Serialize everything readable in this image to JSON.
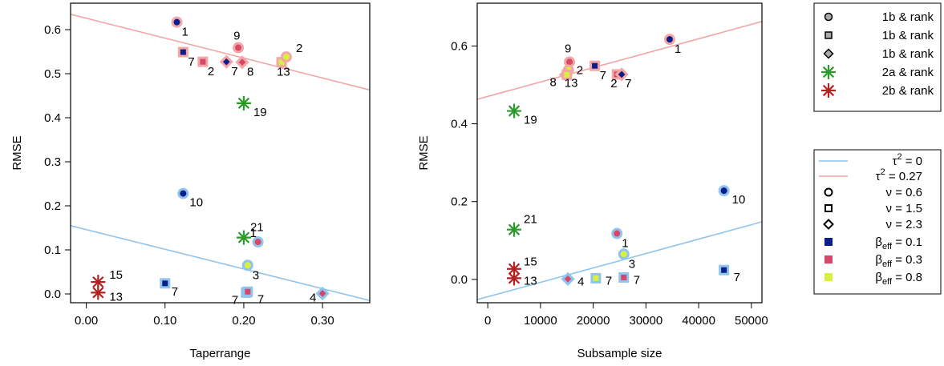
{
  "colors": {
    "tau0": "#8ec4ee",
    "tau027": "#f2a6a6",
    "beta_0_1": "#0b1f8a",
    "beta_0_3": "#d64768",
    "beta_0_8": "#d8ef44",
    "green": "#2a9a2a",
    "darkred": "#b22222"
  },
  "chart_data": [
    {
      "type": "scatter",
      "xlabel": "Taperrange",
      "ylabel": "RMSE",
      "xlim": [
        -0.02,
        0.36
      ],
      "ylim": [
        -0.02,
        0.66
      ],
      "xticks": [
        "0.00",
        "0.10",
        "0.20",
        "0.30"
      ],
      "xtick_values": [
        0.0,
        0.1,
        0.2,
        0.3
      ],
      "yticks": [
        "0.0",
        "0.1",
        "0.2",
        "0.3",
        "0.4",
        "0.5",
        "0.6"
      ],
      "ytick_values": [
        0.0,
        0.1,
        0.2,
        0.3,
        0.4,
        0.5,
        0.6
      ],
      "lines": [
        {
          "tau": "0",
          "x1": -0.02,
          "y1": 0.155,
          "x2": 0.36,
          "y2": -0.015
        },
        {
          "tau": "0.27",
          "x1": -0.02,
          "y1": 0.635,
          "x2": 0.36,
          "y2": 0.463
        }
      ],
      "points": [
        {
          "x": 0.115,
          "y": 0.617,
          "shape": "circle",
          "beta": 0.1,
          "tau": "0.27",
          "label": "1"
        },
        {
          "x": 0.123,
          "y": 0.549,
          "shape": "square",
          "beta": 0.1,
          "tau": "0.27",
          "label": "7"
        },
        {
          "x": 0.148,
          "y": 0.527,
          "shape": "square",
          "beta": 0.3,
          "tau": "0.27",
          "label": "2"
        },
        {
          "x": 0.178,
          "y": 0.527,
          "shape": "diamond",
          "beta": 0.1,
          "tau": "0.27",
          "label": "7"
        },
        {
          "x": 0.193,
          "y": 0.559,
          "shape": "circle",
          "beta": 0.3,
          "tau": "0.27",
          "label": "9"
        },
        {
          "x": 0.198,
          "y": 0.526,
          "shape": "diamond",
          "beta": 0.3,
          "tau": "0.27",
          "label": "8"
        },
        {
          "x": 0.248,
          "y": 0.526,
          "shape": "square",
          "beta": 0.8,
          "tau": "0.27",
          "label": "13"
        },
        {
          "x": 0.254,
          "y": 0.538,
          "shape": "circle",
          "beta": 0.8,
          "tau": "0.27",
          "label": "2"
        },
        {
          "x": 0.2,
          "y": 0.433,
          "shape": "asterisk",
          "color": "green",
          "label": "19"
        },
        {
          "x": 0.123,
          "y": 0.228,
          "shape": "circle",
          "beta": 0.1,
          "tau": "0",
          "label": "10"
        },
        {
          "x": 0.2,
          "y": 0.128,
          "shape": "asterisk",
          "color": "green",
          "label": "21"
        },
        {
          "x": 0.218,
          "y": 0.118,
          "shape": "circle",
          "beta": 0.3,
          "tau": "0",
          "label": "1"
        },
        {
          "x": 0.205,
          "y": 0.065,
          "shape": "circle",
          "beta": 0.8,
          "tau": "0",
          "label": "3"
        },
        {
          "x": 0.1,
          "y": 0.024,
          "shape": "square",
          "beta": 0.1,
          "tau": "0",
          "label": "7"
        },
        {
          "x": 0.203,
          "y": 0.003,
          "shape": "square",
          "beta": 0.8,
          "tau": "0",
          "label": "7"
        },
        {
          "x": 0.205,
          "y": 0.005,
          "shape": "square",
          "beta": 0.3,
          "tau": "0",
          "label": "7"
        },
        {
          "x": 0.3,
          "y": 0.001,
          "shape": "diamond",
          "beta": 0.3,
          "tau": "0",
          "label": "4"
        },
        {
          "x": 0.015,
          "y": 0.027,
          "shape": "asterisk",
          "color": "darkred",
          "label": "15"
        },
        {
          "x": 0.015,
          "y": 0.003,
          "shape": "asterisk",
          "color": "darkred",
          "label": "13"
        }
      ]
    },
    {
      "type": "scatter",
      "xlabel": "Subsample size",
      "ylabel": "RMSE",
      "xlim": [
        -2000,
        52000
      ],
      "ylim": [
        -0.06,
        0.71
      ],
      "xticks": [
        "0",
        "10000",
        "20000",
        "30000",
        "40000",
        "50000"
      ],
      "xtick_values": [
        0,
        10000,
        20000,
        30000,
        40000,
        50000
      ],
      "yticks": [
        "0.0",
        "0.2",
        "0.4",
        "0.6"
      ],
      "ytick_values": [
        0.0,
        0.2,
        0.4,
        0.6
      ],
      "lines": [
        {
          "tau": "0",
          "x1": -2000,
          "y1": -0.052,
          "x2": 52000,
          "y2": 0.148
        },
        {
          "tau": "0.27",
          "x1": -2000,
          "y1": 0.463,
          "x2": 52000,
          "y2": 0.663
        }
      ],
      "points": [
        {
          "x": 34500,
          "y": 0.617,
          "shape": "circle",
          "beta": 0.1,
          "tau": "0.27",
          "label": "1"
        },
        {
          "x": 15500,
          "y": 0.559,
          "shape": "circle",
          "beta": 0.3,
          "tau": "0.27",
          "label": "9"
        },
        {
          "x": 20300,
          "y": 0.549,
          "shape": "square",
          "beta": 0.1,
          "tau": "0.27",
          "label": "7"
        },
        {
          "x": 15300,
          "y": 0.538,
          "shape": "circle",
          "beta": 0.8,
          "tau": "0.27",
          "label": "2"
        },
        {
          "x": 14800,
          "y": 0.526,
          "shape": "diamond",
          "beta": 0.3,
          "tau": "0.27",
          "label": "8"
        },
        {
          "x": 15000,
          "y": 0.526,
          "shape": "square",
          "beta": 0.8,
          "tau": "0.27",
          "label": "13"
        },
        {
          "x": 24500,
          "y": 0.527,
          "shape": "square",
          "beta": 0.3,
          "tau": "0.27",
          "label": "2"
        },
        {
          "x": 25400,
          "y": 0.527,
          "shape": "diamond",
          "beta": 0.1,
          "tau": "0.27",
          "label": "7"
        },
        {
          "x": 5000,
          "y": 0.433,
          "shape": "asterisk",
          "color": "green",
          "label": "19"
        },
        {
          "x": 44800,
          "y": 0.228,
          "shape": "circle",
          "beta": 0.1,
          "tau": "0",
          "label": "10"
        },
        {
          "x": 5000,
          "y": 0.128,
          "shape": "asterisk",
          "color": "green",
          "label": "21"
        },
        {
          "x": 24500,
          "y": 0.118,
          "shape": "circle",
          "beta": 0.3,
          "tau": "0",
          "label": "1"
        },
        {
          "x": 25800,
          "y": 0.065,
          "shape": "circle",
          "beta": 0.8,
          "tau": "0",
          "label": "3"
        },
        {
          "x": 44800,
          "y": 0.024,
          "shape": "square",
          "beta": 0.1,
          "tau": "0",
          "label": "7"
        },
        {
          "x": 5000,
          "y": 0.027,
          "shape": "asterisk",
          "color": "darkred",
          "label": "15"
        },
        {
          "x": 5000,
          "y": 0.003,
          "shape": "asterisk",
          "color": "darkred",
          "label": "13"
        },
        {
          "x": 15200,
          "y": 0.001,
          "shape": "diamond",
          "beta": 0.3,
          "tau": "0",
          "label": "4"
        },
        {
          "x": 20500,
          "y": 0.003,
          "shape": "square",
          "beta": 0.8,
          "tau": "0",
          "label": "7"
        },
        {
          "x": 25800,
          "y": 0.005,
          "shape": "square",
          "beta": 0.3,
          "tau": "0",
          "label": "7"
        }
      ]
    }
  ],
  "legend1": {
    "entries": [
      {
        "shape": "circle",
        "label": "1b & rank"
      },
      {
        "shape": "square",
        "label": "1b & rank"
      },
      {
        "shape": "diamond",
        "label": "1b & rank"
      },
      {
        "shape": "asterisk",
        "color": "green",
        "label": "2a & rank"
      },
      {
        "shape": "asterisk",
        "color": "darkred",
        "label": "2b & rank"
      }
    ]
  },
  "legend2": {
    "entries": [
      {
        "kind": "line",
        "color": "tau0",
        "sym": "τ",
        "sup": "2",
        "rest": " = 0"
      },
      {
        "kind": "line",
        "color": "tau027",
        "sym": "τ",
        "sup": "2",
        "rest": " = 0.27"
      },
      {
        "kind": "circle",
        "sym": "ν",
        "rest": " = 0.6"
      },
      {
        "kind": "square",
        "sym": "ν",
        "rest": " = 1.5"
      },
      {
        "kind": "diamond",
        "sym": "ν",
        "rest": " = 2.3"
      },
      {
        "kind": "fill",
        "color": "beta_0_1",
        "sym": "β",
        "sub": "eff",
        "rest": " = 0.1"
      },
      {
        "kind": "fill",
        "color": "beta_0_3",
        "sym": "β",
        "sub": "eff",
        "rest": " = 0.3"
      },
      {
        "kind": "fill",
        "color": "beta_0_8",
        "sym": "β",
        "sub": "eff",
        "rest": " = 0.8"
      }
    ]
  }
}
